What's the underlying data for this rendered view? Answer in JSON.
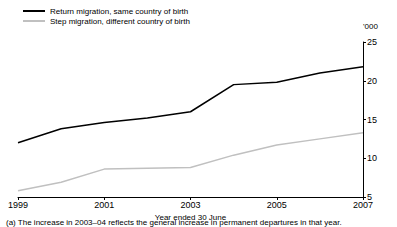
{
  "chart_data": {
    "type": "line",
    "xlabel": "Year ended 30 June",
    "ylabel": "'000",
    "annotations": [
      "(a) The increase in 2003–04 reflects the general increase in permanent departures in that year."
    ],
    "x": [
      1999,
      2000,
      2001,
      2002,
      2003,
      2004,
      2005,
      2006,
      2007
    ],
    "series": [
      {
        "name": "Return migration, same country of birth",
        "color": "#000000",
        "values": [
          12.0,
          13.8,
          14.6,
          15.2,
          16.0,
          19.5,
          19.8,
          21.0,
          21.8
        ]
      },
      {
        "name": "Step migration, different country of birth",
        "color": "#c0c0c0",
        "values": [
          5.8,
          6.9,
          8.6,
          8.7,
          8.8,
          10.4,
          11.7,
          12.5,
          13.3
        ]
      }
    ],
    "xlim": [
      1999,
      2007
    ],
    "xticks": [
      1999,
      2001,
      2003,
      2005,
      2007
    ],
    "ylim": [
      5,
      25
    ],
    "yticks": [
      5,
      10,
      15,
      20,
      25
    ],
    "grid": false,
    "legend": "upper left"
  }
}
